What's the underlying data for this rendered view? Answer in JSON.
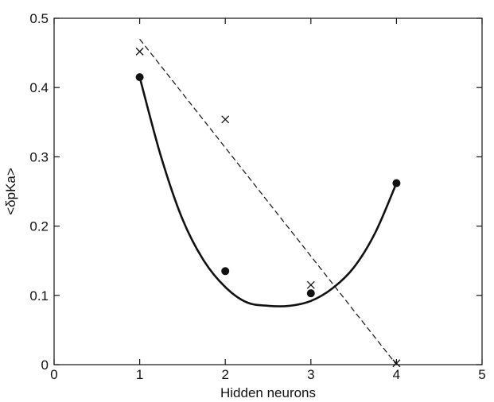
{
  "chart_data": {
    "type": "scatter",
    "xlabel": "Hidden neurons",
    "ylabel": "<δpKa>",
    "xlim": [
      0,
      5
    ],
    "ylim": [
      0,
      0.5
    ],
    "xticks": [
      "0",
      "1",
      "2",
      "3",
      "4",
      "5"
    ],
    "yticks": [
      "0",
      "0.1",
      "0.2",
      "0.3",
      "0.4",
      "0.5"
    ],
    "grid": false,
    "series": [
      {
        "marker": "filled-circle",
        "x": [
          1,
          2,
          3,
          4
        ],
        "y": [
          0.415,
          0.135,
          0.103,
          0.262
        ],
        "fit": {
          "style": "solid",
          "x": [
            1,
            1.25,
            1.5,
            1.75,
            2,
            2.25,
            2.5,
            2.75,
            3,
            3.25,
            3.5,
            3.75,
            4
          ],
          "y": [
            0.415,
            0.3,
            0.21,
            0.15,
            0.112,
            0.09,
            0.085,
            0.085,
            0.092,
            0.11,
            0.14,
            0.19,
            0.262
          ]
        }
      },
      {
        "marker": "x",
        "x": [
          1,
          2,
          3,
          4
        ],
        "y": [
          0.452,
          0.354,
          0.115,
          0.002
        ],
        "fit": {
          "style": "dashed",
          "x": [
            1,
            4
          ],
          "y": [
            0.47,
            0.0
          ]
        }
      }
    ]
  }
}
